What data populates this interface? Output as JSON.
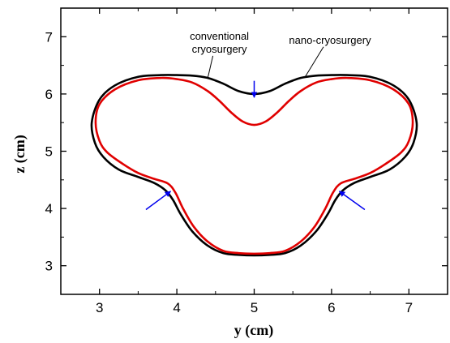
{
  "chart_data": {
    "type": "line",
    "xlabel": "y (cm)",
    "ylabel": "z (cm)",
    "xlim": [
      2.5,
      7.5
    ],
    "ylim": [
      2.5,
      7.5
    ],
    "x_ticks": [
      3,
      4,
      5,
      6,
      7
    ],
    "y_ticks": [
      3,
      4,
      5,
      6,
      7
    ],
    "grid": false,
    "series": [
      {
        "name": "conventional cryosurgery",
        "color": "#000000",
        "points": [
          [
            5.0,
            6.0
          ],
          [
            5.2,
            6.05
          ],
          [
            5.4,
            6.18
          ],
          [
            5.6,
            6.28
          ],
          [
            5.8,
            6.32
          ],
          [
            6.0,
            6.33
          ],
          [
            6.2,
            6.33
          ],
          [
            6.5,
            6.3
          ],
          [
            6.8,
            6.15
          ],
          [
            7.0,
            5.9
          ],
          [
            7.1,
            5.5
          ],
          [
            7.06,
            5.15
          ],
          [
            6.95,
            4.9
          ],
          [
            6.75,
            4.68
          ],
          [
            6.5,
            4.55
          ],
          [
            6.3,
            4.45
          ],
          [
            6.15,
            4.32
          ],
          [
            6.05,
            4.15
          ],
          [
            5.95,
            3.9
          ],
          [
            5.8,
            3.6
          ],
          [
            5.6,
            3.35
          ],
          [
            5.4,
            3.22
          ],
          [
            5.2,
            3.19
          ],
          [
            5.0,
            3.18
          ],
          [
            4.8,
            3.19
          ],
          [
            4.6,
            3.22
          ],
          [
            4.4,
            3.35
          ],
          [
            4.2,
            3.6
          ],
          [
            4.05,
            3.9
          ],
          [
            3.95,
            4.15
          ],
          [
            3.85,
            4.32
          ],
          [
            3.7,
            4.45
          ],
          [
            3.5,
            4.55
          ],
          [
            3.25,
            4.68
          ],
          [
            3.05,
            4.9
          ],
          [
            2.94,
            5.15
          ],
          [
            2.9,
            5.5
          ],
          [
            3.0,
            5.9
          ],
          [
            3.2,
            6.15
          ],
          [
            3.5,
            6.3
          ],
          [
            3.8,
            6.33
          ],
          [
            4.0,
            6.33
          ],
          [
            4.2,
            6.32
          ],
          [
            4.4,
            6.28
          ],
          [
            4.6,
            6.18
          ],
          [
            4.8,
            6.05
          ],
          [
            5.0,
            6.0
          ]
        ]
      },
      {
        "name": "nano-cryosurgery",
        "color": "#e00000",
        "points": [
          [
            5.0,
            5.46
          ],
          [
            5.15,
            5.52
          ],
          [
            5.3,
            5.68
          ],
          [
            5.45,
            5.88
          ],
          [
            5.6,
            6.05
          ],
          [
            5.8,
            6.2
          ],
          [
            6.0,
            6.26
          ],
          [
            6.2,
            6.28
          ],
          [
            6.5,
            6.24
          ],
          [
            6.8,
            6.08
          ],
          [
            7.0,
            5.82
          ],
          [
            7.05,
            5.5
          ],
          [
            7.0,
            5.18
          ],
          [
            6.9,
            4.98
          ],
          [
            6.7,
            4.78
          ],
          [
            6.5,
            4.62
          ],
          [
            6.3,
            4.52
          ],
          [
            6.12,
            4.44
          ],
          [
            6.02,
            4.28
          ],
          [
            5.92,
            4.0
          ],
          [
            5.78,
            3.68
          ],
          [
            5.6,
            3.42
          ],
          [
            5.4,
            3.26
          ],
          [
            5.2,
            3.22
          ],
          [
            5.0,
            3.21
          ],
          [
            4.8,
            3.22
          ],
          [
            4.6,
            3.26
          ],
          [
            4.4,
            3.42
          ],
          [
            4.22,
            3.68
          ],
          [
            4.08,
            4.0
          ],
          [
            3.98,
            4.28
          ],
          [
            3.88,
            4.44
          ],
          [
            3.7,
            4.52
          ],
          [
            3.5,
            4.62
          ],
          [
            3.3,
            4.78
          ],
          [
            3.1,
            4.98
          ],
          [
            3.0,
            5.18
          ],
          [
            2.95,
            5.5
          ],
          [
            3.0,
            5.82
          ],
          [
            3.2,
            6.08
          ],
          [
            3.5,
            6.24
          ],
          [
            3.8,
            6.28
          ],
          [
            4.0,
            6.26
          ],
          [
            4.2,
            6.2
          ],
          [
            4.4,
            6.05
          ],
          [
            4.55,
            5.88
          ],
          [
            4.7,
            5.68
          ],
          [
            4.85,
            5.52
          ],
          [
            5.0,
            5.46
          ]
        ]
      }
    ],
    "annotations": [
      {
        "lines": [
          "conventional",
          "cryosurgery"
        ],
        "x": 4.55,
        "y": 6.95,
        "target": [
          4.4,
          6.28
        ]
      },
      {
        "lines": [
          "nano-cryosurgery"
        ],
        "x": 5.98,
        "y": 6.88,
        "target": [
          5.65,
          6.28
        ]
      }
    ],
    "arrows": [
      {
        "from": [
          5.0,
          6.23
        ],
        "to": [
          5.0,
          5.94
        ],
        "color": "#0000ee"
      },
      {
        "from": [
          3.6,
          3.98
        ],
        "to": [
          3.92,
          4.3
        ],
        "color": "#0000ee"
      },
      {
        "from": [
          6.43,
          3.98
        ],
        "to": [
          6.1,
          4.3
        ],
        "color": "#0000ee"
      }
    ]
  }
}
